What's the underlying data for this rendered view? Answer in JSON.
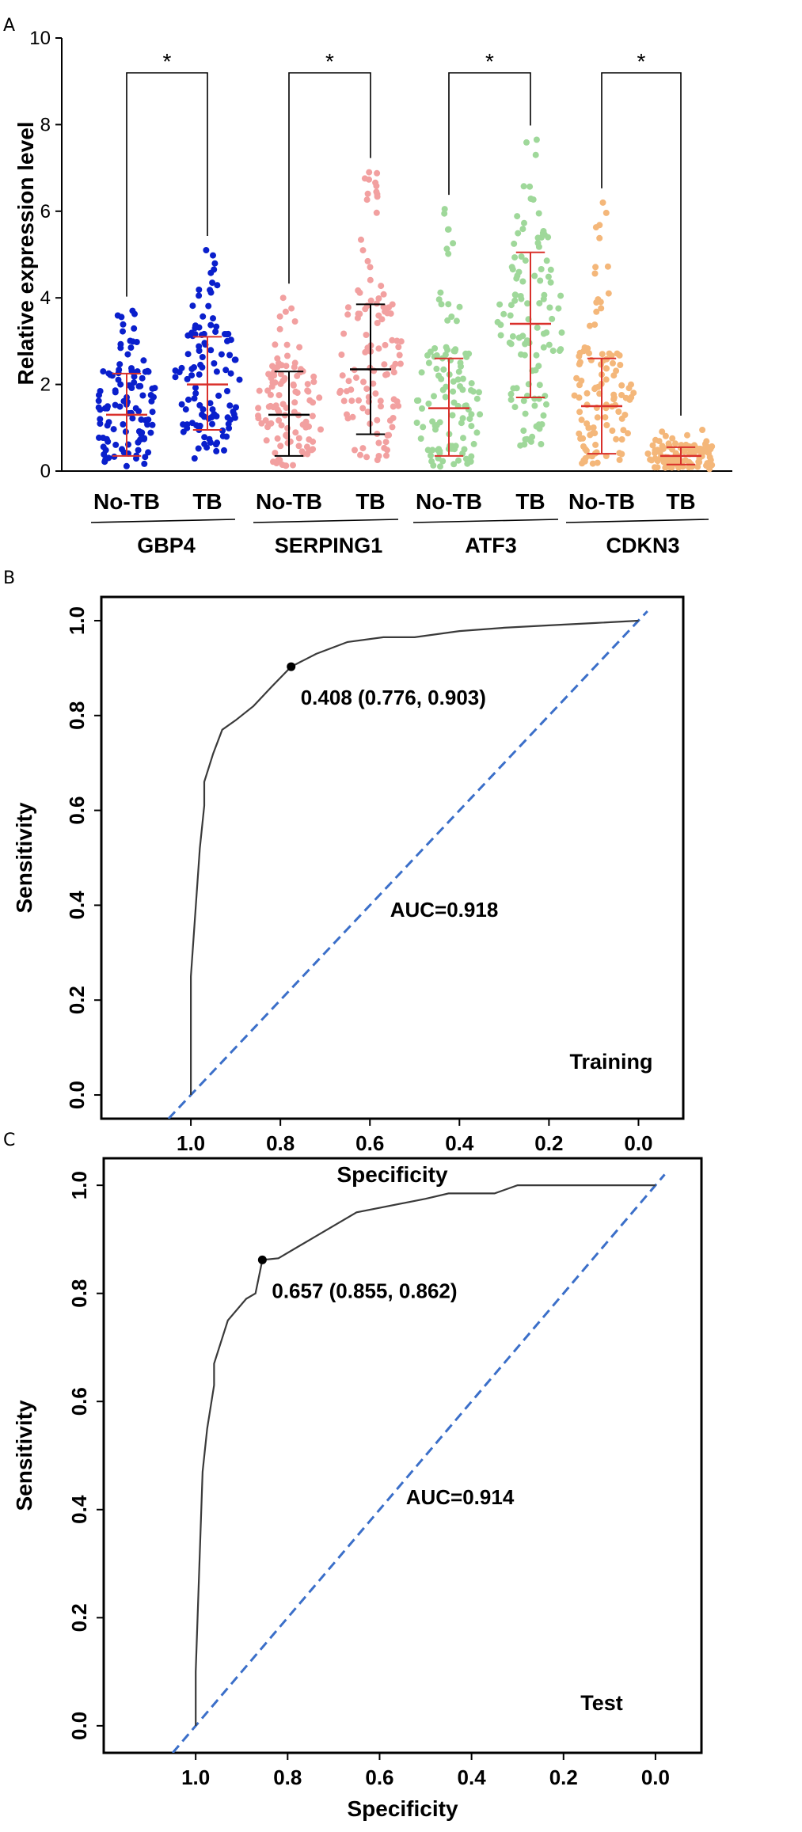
{
  "chart_data": [
    {
      "panel": "A",
      "type": "scatter",
      "subtype": "dot-plot with mean ± SD",
      "ylabel": "Relative expression level",
      "ylim": [
        0,
        10
      ],
      "yticks": [
        "0",
        "2",
        "4",
        "6",
        "8",
        "10"
      ],
      "significance_marker": "*",
      "groups": [
        {
          "gene": "GBP4",
          "conditions": [
            {
              "label": "No-TB",
              "color": "#0a1fcc",
              "mean": 1.3,
              "sd_low": 0.35,
              "sd_high": 2.25,
              "max": 3.7,
              "errorbar_color": "#d9302b"
            },
            {
              "label": "TB",
              "color": "#0a1fcc",
              "mean": 2.0,
              "sd_low": 0.95,
              "sd_high": 3.1,
              "max": 5.1,
              "errorbar_color": "#d9302b"
            }
          ]
        },
        {
          "gene": "SERPING1",
          "conditions": [
            {
              "label": "No-TB",
              "color": "#f2a0a0",
              "mean": 1.3,
              "sd_low": 0.35,
              "sd_high": 2.3,
              "max": 4.0,
              "errorbar_color": "#000000"
            },
            {
              "label": "TB",
              "color": "#f2a0a0",
              "mean": 2.35,
              "sd_low": 0.85,
              "sd_high": 3.85,
              "max": 6.9,
              "errorbar_color": "#000000"
            }
          ]
        },
        {
          "gene": "ATF3",
          "conditions": [
            {
              "label": "No-TB",
              "color": "#9fd89a",
              "mean": 1.45,
              "sd_low": 0.35,
              "sd_high": 2.6,
              "max": 6.05,
              "errorbar_color": "#d9302b"
            },
            {
              "label": "TB",
              "color": "#9fd89a",
              "mean": 3.4,
              "sd_low": 1.7,
              "sd_high": 5.05,
              "max": 7.65,
              "errorbar_color": "#d9302b"
            }
          ]
        },
        {
          "gene": "CDKN3",
          "conditions": [
            {
              "label": "No-TB",
              "color": "#f4b77a",
              "mean": 1.5,
              "sd_low": 0.4,
              "sd_high": 2.6,
              "max": 6.2,
              "errorbar_color": "#d9302b"
            },
            {
              "label": "TB",
              "color": "#f4b77a",
              "mean": 0.35,
              "sd_low": 0.15,
              "sd_high": 0.55,
              "max": 0.95,
              "errorbar_color": "#d9302b"
            }
          ]
        }
      ]
    },
    {
      "panel": "B",
      "type": "line",
      "subtype": "ROC curve",
      "xlabel": "Specificity",
      "ylabel": "Sensitivity",
      "xlim": [
        1.2,
        -0.1
      ],
      "ylim": [
        -0.05,
        1.05
      ],
      "xticks": [
        "1.0",
        "0.8",
        "0.6",
        "0.4",
        "0.2",
        "0.0"
      ],
      "yticks": [
        "0.0",
        "0.2",
        "0.4",
        "0.6",
        "0.8",
        "1.0"
      ],
      "specificity": [
        1.0,
        1.0,
        0.98,
        0.97,
        0.97,
        0.95,
        0.93,
        0.9,
        0.86,
        0.82,
        0.776,
        0.72,
        0.65,
        0.57,
        0.5,
        0.4,
        0.3,
        0.2,
        0.1,
        0.0
      ],
      "sensitivity": [
        0.0,
        0.25,
        0.52,
        0.61,
        0.66,
        0.72,
        0.77,
        0.79,
        0.82,
        0.86,
        0.903,
        0.93,
        0.955,
        0.965,
        0.965,
        0.978,
        0.985,
        0.99,
        0.995,
        1.0
      ],
      "diagonal_x": [
        1.05,
        -0.02
      ],
      "diagonal_y": [
        -0.05,
        1.02
      ],
      "threshold_point": {
        "specificity": 0.776,
        "sensitivity": 0.903
      },
      "threshold_label": "0.408 (0.776, 0.903)",
      "auc_label": "AUC=0.918",
      "set_label": "Training",
      "curve_color": "#3a3a3a",
      "diagonal_color": "#3b6fc9"
    },
    {
      "panel": "C",
      "type": "line",
      "subtype": "ROC curve",
      "xlabel": "Specificity",
      "ylabel": "Sensitivity",
      "xlim": [
        1.2,
        -0.1
      ],
      "ylim": [
        -0.05,
        1.05
      ],
      "xticks": [
        "1.0",
        "0.8",
        "0.6",
        "0.4",
        "0.2",
        "0.0"
      ],
      "yticks": [
        "0.0",
        "0.2",
        "0.4",
        "0.6",
        "0.8",
        "1.0"
      ],
      "specificity": [
        1.0,
        1.0,
        0.985,
        0.975,
        0.96,
        0.96,
        0.93,
        0.89,
        0.87,
        0.855,
        0.82,
        0.75,
        0.65,
        0.5,
        0.45,
        0.35,
        0.3,
        0.2,
        0.0
      ],
      "sensitivity": [
        0.0,
        0.1,
        0.47,
        0.55,
        0.63,
        0.67,
        0.75,
        0.79,
        0.8,
        0.862,
        0.865,
        0.9,
        0.95,
        0.975,
        0.985,
        0.985,
        1.0,
        1.0,
        1.0
      ],
      "diagonal_x": [
        1.05,
        -0.02
      ],
      "diagonal_y": [
        -0.05,
        1.02
      ],
      "threshold_point": {
        "specificity": 0.855,
        "sensitivity": 0.862
      },
      "threshold_label": "0.657  (0.855, 0.862)",
      "auc_label": "AUC=0.914",
      "set_label": "Test",
      "curve_color": "#3a3a3a",
      "diagonal_color": "#3b6fc9"
    }
  ]
}
